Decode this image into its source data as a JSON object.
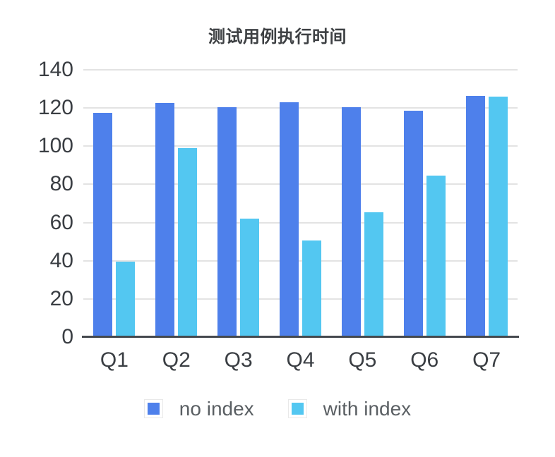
{
  "chart_data": {
    "type": "bar",
    "title": "测试用例执行时间",
    "categories": [
      "Q1",
      "Q2",
      "Q3",
      "Q4",
      "Q5",
      "Q6",
      "Q7"
    ],
    "series": [
      {
        "name": "no index",
        "color": "#4E80EB",
        "values": [
          117.5,
          122.5,
          120.5,
          123,
          120.5,
          118.5,
          126.5
        ]
      },
      {
        "name": "with index",
        "color": "#53C7F1",
        "values": [
          39.5,
          99,
          62,
          50.5,
          65.5,
          84.5,
          126
        ]
      }
    ],
    "xlabel": "",
    "ylabel": "",
    "ylim": [
      0,
      140
    ],
    "yticks": [
      0,
      20,
      40,
      60,
      80,
      100,
      120,
      140
    ],
    "grid": true,
    "legend_position": "bottom",
    "colors": {
      "background": "#FFFFFF",
      "title_text": "#3D4043",
      "grid_line": "#E3E3E3",
      "axis_line": "#45494E",
      "tick_label": "#3A3E43",
      "legend_label": "#5A5F63",
      "legend_box_border": "#E9E9E9",
      "legend_box_bg": "#FFFFFF"
    }
  }
}
